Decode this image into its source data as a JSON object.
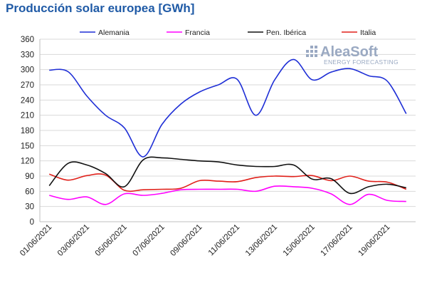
{
  "chart_data": {
    "type": "line",
    "title": "Producción solar europea [GWh]",
    "xlabel": "",
    "ylabel": "",
    "ylim": [
      0,
      360
    ],
    "yticks": [
      0,
      30,
      60,
      90,
      120,
      150,
      180,
      210,
      240,
      270,
      300,
      330,
      360
    ],
    "grid": true,
    "legend": "top",
    "x": [
      "01/06/2021",
      "02/06/2021",
      "03/06/2021",
      "04/06/2021",
      "05/06/2021",
      "06/06/2021",
      "07/06/2021",
      "08/06/2021",
      "09/06/2021",
      "10/06/2021",
      "11/06/2021",
      "12/06/2021",
      "13/06/2021",
      "14/06/2021",
      "15/06/2021",
      "16/06/2021",
      "17/06/2021",
      "18/06/2021",
      "19/06/2021",
      "20/06/2021"
    ],
    "xtick_labels": [
      "01/06/2021",
      "03/06/2021",
      "05/06/2021",
      "07/06/2021",
      "09/06/2021",
      "11/06/2021",
      "13/06/2021",
      "15/06/2021",
      "17/06/2021",
      "19/06/2021"
    ],
    "series": [
      {
        "name": "Alemania",
        "color": "#1f2fd6",
        "values": [
          299,
          296,
          248,
          210,
          185,
          128,
          192,
          232,
          256,
          270,
          281,
          210,
          280,
          320,
          280,
          295,
          302,
          288,
          277,
          213
        ]
      },
      {
        "name": "Francia",
        "color": "#ff00ff",
        "values": [
          52,
          44,
          49,
          34,
          55,
          52,
          56,
          63,
          64,
          64,
          64,
          60,
          70,
          69,
          66,
          55,
          34,
          54,
          42,
          40
        ]
      },
      {
        "name": "Pen. Ibérica",
        "color": "#111111",
        "values": [
          71,
          115,
          112,
          95,
          69,
          122,
          126,
          123,
          120,
          118,
          112,
          109,
          109,
          112,
          84,
          85,
          56,
          69,
          74,
          67
        ]
      },
      {
        "name": "Italia",
        "color": "#e0201a",
        "values": [
          94,
          82,
          91,
          92,
          62,
          63,
          64,
          66,
          81,
          80,
          79,
          87,
          90,
          89,
          91,
          81,
          90,
          80,
          78,
          64
        ]
      }
    ]
  },
  "watermark": {
    "main": "AleaSoft",
    "sub": "ENERGY FORECASTING"
  }
}
